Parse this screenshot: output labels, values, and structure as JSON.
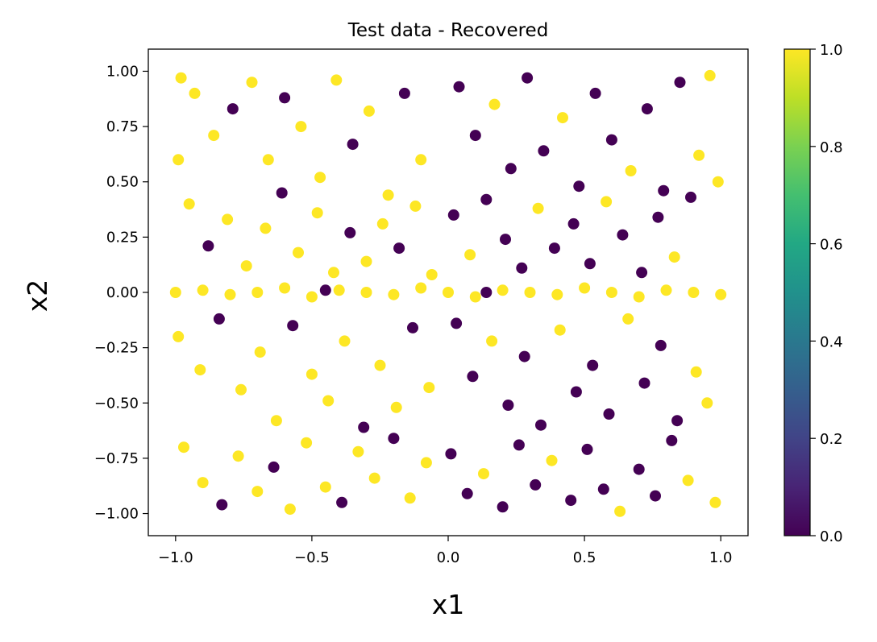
{
  "chart_data": {
    "type": "scatter",
    "title": "Test data - Recovered",
    "xlabel": "x1",
    "ylabel": "x2",
    "xlim": [
      -1.1,
      1.1
    ],
    "ylim": [
      -1.1,
      1.1
    ],
    "xticks": [
      -1.0,
      -0.5,
      0.0,
      0.5,
      1.0
    ],
    "xtick_labels": [
      "−1.0",
      "−0.5",
      "0.0",
      "0.5",
      "1.0"
    ],
    "yticks": [
      1.0,
      0.75,
      0.5,
      0.25,
      0.0,
      -0.25,
      -0.5,
      -0.75,
      -1.0
    ],
    "ytick_labels": [
      "1.00",
      "0.75",
      "0.50",
      "0.25",
      "0.00",
      "−0.25",
      "−0.50",
      "−0.75",
      "−1.00"
    ],
    "grid": false,
    "colorbar": {
      "colormap": "viridis",
      "range": [
        0.0,
        1.0
      ],
      "ticks": [
        0.0,
        0.2,
        0.4,
        0.6,
        0.8,
        1.0
      ],
      "tick_labels": [
        "0.0",
        "0.2",
        "0.4",
        "0.6",
        "0.8",
        "1.0"
      ]
    },
    "colors": {
      "class_0": "#440154",
      "class_1": "#fde725"
    },
    "point_description": "Dense uniform scatter over x1 in [-1, 1] and x2 in [-1, 1]; points colored by predicted class (0 = dark purple, 1 = yellow). Yellow dominates for x1 < 0, purple dominates for x1 > 0, and a horizontal band of class-1 points lies along x2 = 0 across the full x1 range.",
    "points": [
      [
        -0.98,
        0.97,
        1
      ],
      [
        -0.93,
        0.9,
        1
      ],
      [
        -0.86,
        0.71,
        1
      ],
      [
        -0.79,
        0.83,
        0
      ],
      [
        -0.72,
        0.95,
        1
      ],
      [
        -0.66,
        0.6,
        1
      ],
      [
        -0.6,
        0.88,
        0
      ],
      [
        -0.54,
        0.75,
        1
      ],
      [
        -0.47,
        0.52,
        1
      ],
      [
        -0.41,
        0.96,
        1
      ],
      [
        -0.35,
        0.67,
        0
      ],
      [
        -0.29,
        0.82,
        1
      ],
      [
        -0.22,
        0.44,
        1
      ],
      [
        -0.16,
        0.9,
        0
      ],
      [
        -0.1,
        0.6,
        1
      ],
      [
        -0.95,
        0.4,
        1
      ],
      [
        -0.88,
        0.21,
        0
      ],
      [
        -0.81,
        0.33,
        1
      ],
      [
        -0.74,
        0.12,
        1
      ],
      [
        -0.67,
        0.29,
        1
      ],
      [
        -0.61,
        0.45,
        0
      ],
      [
        -0.55,
        0.18,
        1
      ],
      [
        -0.48,
        0.36,
        1
      ],
      [
        -0.42,
        0.09,
        1
      ],
      [
        -0.36,
        0.27,
        0
      ],
      [
        -0.3,
        0.14,
        1
      ],
      [
        -0.24,
        0.31,
        1
      ],
      [
        -0.18,
        0.2,
        0
      ],
      [
        -0.12,
        0.39,
        1
      ],
      [
        -0.06,
        0.08,
        1
      ],
      [
        -0.99,
        -0.2,
        1
      ],
      [
        -0.91,
        -0.35,
        1
      ],
      [
        -0.84,
        -0.12,
        0
      ],
      [
        -0.76,
        -0.44,
        1
      ],
      [
        -0.69,
        -0.27,
        1
      ],
      [
        -0.63,
        -0.58,
        1
      ],
      [
        -0.57,
        -0.15,
        0
      ],
      [
        -0.5,
        -0.37,
        1
      ],
      [
        -0.44,
        -0.49,
        1
      ],
      [
        -0.38,
        -0.22,
        1
      ],
      [
        -0.31,
        -0.61,
        0
      ],
      [
        -0.25,
        -0.33,
        1
      ],
      [
        -0.19,
        -0.52,
        1
      ],
      [
        -0.13,
        -0.16,
        0
      ],
      [
        -0.07,
        -0.43,
        1
      ],
      [
        -0.97,
        -0.7,
        1
      ],
      [
        -0.9,
        -0.86,
        1
      ],
      [
        -0.83,
        -0.96,
        0
      ],
      [
        -0.77,
        -0.74,
        1
      ],
      [
        -0.7,
        -0.9,
        1
      ],
      [
        -0.64,
        -0.79,
        0
      ],
      [
        -0.58,
        -0.98,
        1
      ],
      [
        -0.52,
        -0.68,
        1
      ],
      [
        -0.45,
        -0.88,
        1
      ],
      [
        -0.39,
        -0.95,
        0
      ],
      [
        -0.33,
        -0.72,
        1
      ],
      [
        -0.27,
        -0.84,
        1
      ],
      [
        -0.2,
        -0.66,
        0
      ],
      [
        -0.14,
        -0.93,
        1
      ],
      [
        -0.08,
        -0.77,
        1
      ],
      [
        0.04,
        0.93,
        0
      ],
      [
        0.1,
        0.71,
        0
      ],
      [
        0.17,
        0.85,
        1
      ],
      [
        0.23,
        0.56,
        0
      ],
      [
        0.29,
        0.97,
        0
      ],
      [
        0.35,
        0.64,
        0
      ],
      [
        0.42,
        0.79,
        1
      ],
      [
        0.48,
        0.48,
        0
      ],
      [
        0.54,
        0.9,
        0
      ],
      [
        0.6,
        0.69,
        0
      ],
      [
        0.67,
        0.55,
        1
      ],
      [
        0.73,
        0.83,
        0
      ],
      [
        0.79,
        0.46,
        0
      ],
      [
        0.85,
        0.95,
        0
      ],
      [
        0.92,
        0.62,
        1
      ],
      [
        0.02,
        0.35,
        0
      ],
      [
        0.08,
        0.17,
        1
      ],
      [
        0.14,
        0.42,
        0
      ],
      [
        0.21,
        0.24,
        0
      ],
      [
        0.27,
        0.11,
        0
      ],
      [
        0.33,
        0.38,
        1
      ],
      [
        0.39,
        0.2,
        0
      ],
      [
        0.46,
        0.31,
        0
      ],
      [
        0.52,
        0.13,
        0
      ],
      [
        0.58,
        0.41,
        1
      ],
      [
        0.64,
        0.26,
        0
      ],
      [
        0.71,
        0.09,
        0
      ],
      [
        0.77,
        0.34,
        0
      ],
      [
        0.83,
        0.16,
        1
      ],
      [
        0.89,
        0.43,
        0
      ],
      [
        0.03,
        -0.14,
        0
      ],
      [
        0.09,
        -0.38,
        0
      ],
      [
        0.16,
        -0.22,
        1
      ],
      [
        0.22,
        -0.51,
        0
      ],
      [
        0.28,
        -0.29,
        0
      ],
      [
        0.34,
        -0.6,
        0
      ],
      [
        0.41,
        -0.17,
        1
      ],
      [
        0.47,
        -0.45,
        0
      ],
      [
        0.53,
        -0.33,
        0
      ],
      [
        0.59,
        -0.55,
        0
      ],
      [
        0.66,
        -0.12,
        1
      ],
      [
        0.72,
        -0.41,
        0
      ],
      [
        0.78,
        -0.24,
        0
      ],
      [
        0.84,
        -0.58,
        0
      ],
      [
        0.91,
        -0.36,
        1
      ],
      [
        0.01,
        -0.73,
        0
      ],
      [
        0.07,
        -0.91,
        0
      ],
      [
        0.13,
        -0.82,
        1
      ],
      [
        0.2,
        -0.97,
        0
      ],
      [
        0.26,
        -0.69,
        0
      ],
      [
        0.32,
        -0.87,
        0
      ],
      [
        0.38,
        -0.76,
        1
      ],
      [
        0.45,
        -0.94,
        0
      ],
      [
        0.51,
        -0.71,
        0
      ],
      [
        0.57,
        -0.89,
        0
      ],
      [
        0.63,
        -0.99,
        1
      ],
      [
        0.7,
        -0.8,
        0
      ],
      [
        0.76,
        -0.92,
        0
      ],
      [
        0.82,
        -0.67,
        0
      ],
      [
        0.88,
        -0.85,
        1
      ],
      [
        0.96,
        0.98,
        1
      ],
      [
        0.99,
        0.5,
        1
      ],
      [
        0.95,
        -0.5,
        1
      ],
      [
        0.98,
        -0.95,
        1
      ],
      [
        -0.99,
        0.6,
        1
      ],
      [
        -1.0,
        0.0,
        1
      ],
      [
        -0.9,
        0.01,
        1
      ],
      [
        -0.8,
        -0.01,
        1
      ],
      [
        -0.7,
        0.0,
        1
      ],
      [
        -0.6,
        0.02,
        1
      ],
      [
        -0.5,
        -0.02,
        1
      ],
      [
        -0.4,
        0.01,
        1
      ],
      [
        -0.3,
        0.0,
        1
      ],
      [
        -0.2,
        -0.01,
        1
      ],
      [
        -0.1,
        0.02,
        1
      ],
      [
        0.0,
        0.0,
        1
      ],
      [
        0.1,
        -0.02,
        1
      ],
      [
        0.2,
        0.01,
        1
      ],
      [
        0.3,
        0.0,
        1
      ],
      [
        0.4,
        -0.01,
        1
      ],
      [
        0.5,
        0.02,
        1
      ],
      [
        0.6,
        0.0,
        1
      ],
      [
        0.7,
        -0.02,
        1
      ],
      [
        0.8,
        0.01,
        1
      ],
      [
        0.9,
        0.0,
        1
      ],
      [
        1.0,
        -0.01,
        1
      ],
      [
        -0.45,
        0.01,
        0
      ],
      [
        0.14,
        0.0,
        0
      ]
    ]
  }
}
